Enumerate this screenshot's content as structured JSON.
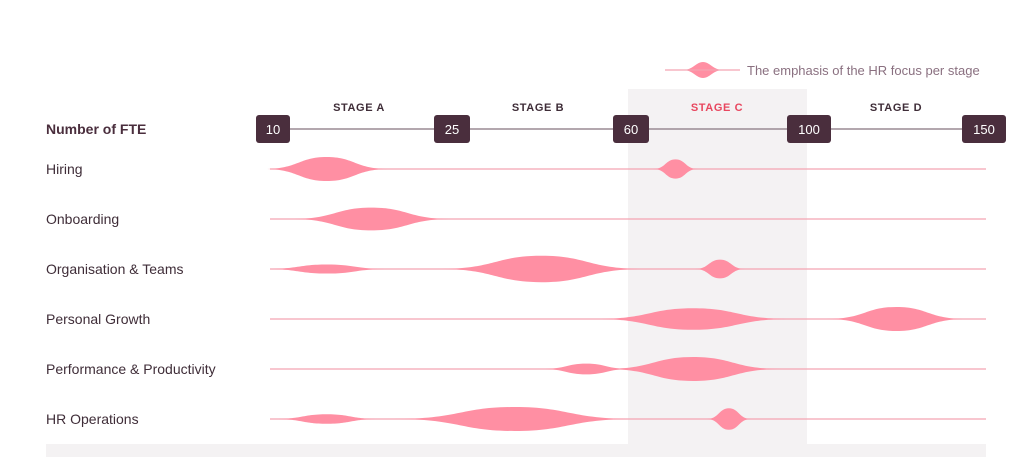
{
  "chart_data": {
    "type": "area",
    "title": "",
    "axis_title": "Number of FTE",
    "ticks": [
      "10",
      "25",
      "60",
      "100",
      "150"
    ],
    "stages": [
      {
        "label": "STAGE A",
        "highlighted": false
      },
      {
        "label": "STAGE B",
        "highlighted": false
      },
      {
        "label": "STAGE C",
        "highlighted": true
      },
      {
        "label": "STAGE D",
        "highlighted": false
      }
    ],
    "legend": {
      "label": "The emphasis of the HR focus per stage",
      "placement": "top-right"
    },
    "value_scale": "relative emphasis, 0–1",
    "rows": [
      {
        "label": "Hiring",
        "emphasis": [
          {
            "center": 0.3,
            "width": 0.7,
            "value": 1.0
          },
          {
            "center": 2.25,
            "width": 0.25,
            "value": 0.8
          }
        ]
      },
      {
        "label": "Onboarding",
        "emphasis": [
          {
            "center": 0.55,
            "width": 0.9,
            "value": 0.95
          }
        ]
      },
      {
        "label": "Organisation & Teams",
        "emphasis": [
          {
            "center": 0.3,
            "width": 0.7,
            "value": 0.38
          },
          {
            "center": 1.5,
            "width": 1.15,
            "value": 1.1
          },
          {
            "center": 2.5,
            "width": 0.28,
            "value": 0.78
          }
        ]
      },
      {
        "label": "Personal Growth",
        "emphasis": [
          {
            "center": 2.35,
            "width": 1.1,
            "value": 0.9
          },
          {
            "center": 3.5,
            "width": 0.8,
            "value": 1.0
          }
        ]
      },
      {
        "label": "Performance & Productivity",
        "emphasis": [
          {
            "center": 1.75,
            "width": 0.5,
            "value": 0.45
          },
          {
            "center": 2.35,
            "width": 1.0,
            "value": 1.0
          }
        ]
      },
      {
        "label": "HR Operations",
        "emphasis": [
          {
            "center": 0.3,
            "width": 0.6,
            "value": 0.4
          },
          {
            "center": 1.35,
            "width": 1.35,
            "value": 1.0
          },
          {
            "center": 2.55,
            "width": 0.25,
            "value": 0.9
          }
        ]
      }
    ],
    "colors": {
      "shape": "#ff8fa3",
      "line": "#f3a4b2",
      "axis_line": "#9a8a93",
      "tick_box": "#4a2e3d",
      "highlight_band": "#f4f2f3",
      "bottom_band": "#f4f2f3",
      "text": "#3f2d38",
      "highlight_text": "#e8475f",
      "legend_text": "#8a7080"
    }
  }
}
